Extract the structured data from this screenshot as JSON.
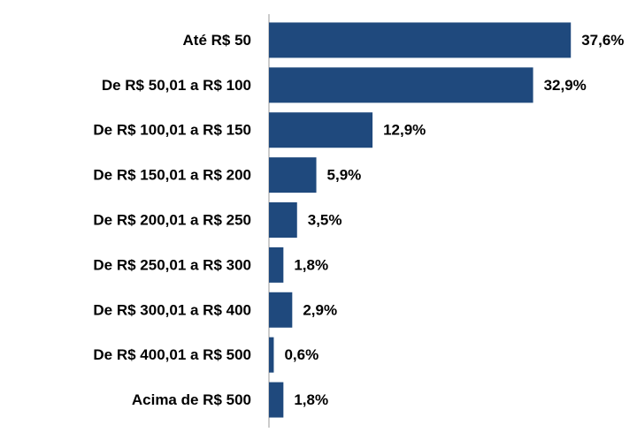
{
  "chart_data": {
    "type": "hbar",
    "categories": [
      "Até R$ 50",
      "De R$ 50,01 a R$ 100",
      "De R$ 100,01 a R$ 150",
      "De R$ 150,01 a R$ 200",
      "De R$ 200,01 a R$ 250",
      "De R$ 250,01 a R$ 300",
      "De R$ 300,01 a R$ 400",
      "De R$ 400,01 a R$ 500",
      "Acima de R$ 500"
    ],
    "values": [
      37.6,
      32.9,
      12.9,
      5.9,
      3.5,
      1.8,
      2.9,
      0.6,
      1.8
    ],
    "value_labels": [
      "37,6%",
      "32,9%",
      "12,9%",
      "5,9%",
      "3,5%",
      "1,8%",
      "2,9%",
      "0,6%",
      "1,8%"
    ],
    "color": "#1f497d",
    "xlim": [
      0,
      40
    ]
  }
}
